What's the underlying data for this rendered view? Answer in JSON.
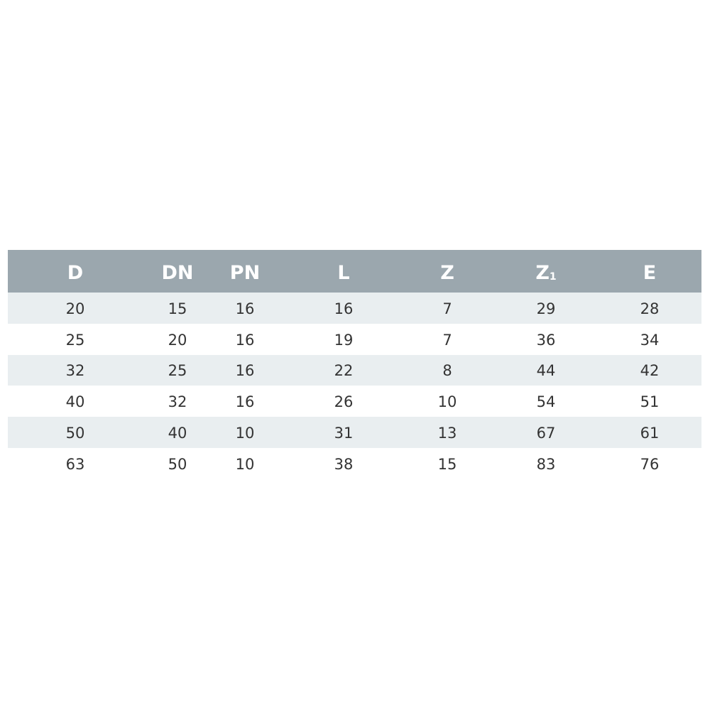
{
  "table": {
    "headers": [
      {
        "main": "D",
        "sub": ""
      },
      {
        "main": "DN",
        "sub": ""
      },
      {
        "main": "PN",
        "sub": ""
      },
      {
        "main": "L",
        "sub": ""
      },
      {
        "main": "Z",
        "sub": ""
      },
      {
        "main": "Z",
        "sub": "1"
      },
      {
        "main": "E",
        "sub": ""
      }
    ],
    "rows": [
      [
        "20",
        "15",
        "16",
        "16",
        "7",
        "29",
        "28"
      ],
      [
        "25",
        "20",
        "16",
        "19",
        "7",
        "36",
        "34"
      ],
      [
        "32",
        "25",
        "16",
        "22",
        "8",
        "44",
        "42"
      ],
      [
        "40",
        "32",
        "16",
        "26",
        "10",
        "54",
        "51"
      ],
      [
        "50",
        "40",
        "10",
        "31",
        "13",
        "67",
        "61"
      ],
      [
        "63",
        "50",
        "10",
        "38",
        "15",
        "83",
        "76"
      ]
    ],
    "colors": {
      "header_bg": "#9ba7ae",
      "stripe_bg": "#e9eef0",
      "header_text": "#ffffff",
      "body_text": "#333333"
    }
  }
}
